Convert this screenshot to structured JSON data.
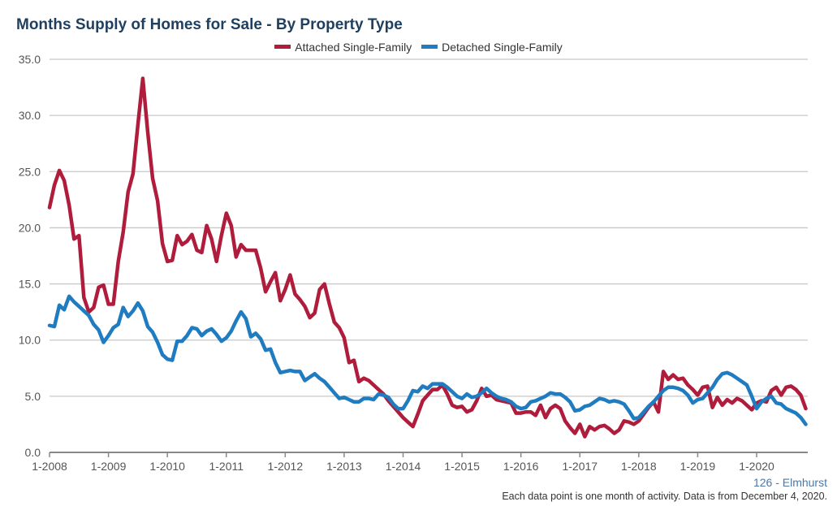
{
  "chart_data": {
    "type": "line",
    "title": "Months Supply of Homes for Sale - By Property Type",
    "xlabel": "",
    "ylabel": "",
    "ylim": [
      0,
      35
    ],
    "yticks": [
      "0.0",
      "5.0",
      "10.0",
      "15.0",
      "20.0",
      "25.0",
      "30.0",
      "35.0"
    ],
    "xticks": [
      "1-2008",
      "1-2009",
      "1-2010",
      "1-2011",
      "1-2012",
      "1-2013",
      "1-2014",
      "1-2015",
      "1-2016",
      "1-2017",
      "1-2018",
      "1-2019",
      "1-2020"
    ],
    "x_start": "1-2008",
    "x_end": "11-2020",
    "grid": "horizontal",
    "legend_position": "top",
    "series": [
      {
        "name": "Attached Single-Family",
        "color": "#b01c3b",
        "values": [
          21.8,
          23.8,
          25.1,
          24.2,
          22.0,
          19.0,
          19.3,
          13.8,
          12.5,
          12.9,
          14.7,
          14.9,
          13.2,
          13.2,
          17.0,
          19.6,
          23.2,
          24.8,
          29.2,
          33.3,
          28.5,
          24.4,
          22.4,
          18.6,
          17.0,
          17.1,
          19.3,
          18.5,
          18.8,
          19.4,
          18.0,
          17.8,
          20.2,
          19.0,
          17.0,
          19.3,
          21.3,
          20.2,
          17.4,
          18.5,
          18.0,
          18.0,
          18.0,
          16.4,
          14.3,
          15.2,
          16.0,
          13.5,
          14.5,
          15.8,
          14.1,
          13.6,
          13.0,
          12.0,
          12.4,
          14.5,
          15.0,
          13.2,
          11.6,
          11.1,
          10.2,
          8.0,
          8.2,
          6.3,
          6.6,
          6.4,
          6.0,
          5.6,
          5.2,
          4.6,
          4.1,
          3.6,
          3.1,
          2.7,
          2.3,
          3.4,
          4.6,
          5.1,
          5.6,
          5.6,
          6.0,
          5.2,
          4.2,
          4.0,
          4.1,
          3.6,
          3.8,
          4.6,
          5.7,
          5.0,
          5.1,
          4.7,
          4.6,
          4.5,
          4.4,
          3.5,
          3.5,
          3.6,
          3.6,
          3.3,
          4.2,
          3.1,
          3.9,
          4.2,
          3.9,
          2.8,
          2.2,
          1.7,
          2.5,
          1.4,
          2.3,
          2.0,
          2.3,
          2.4,
          2.1,
          1.7,
          2.0,
          2.8,
          2.7,
          2.5,
          2.8,
          3.4,
          4.0,
          4.5,
          3.6,
          7.2,
          6.5,
          6.9,
          6.5,
          6.6,
          6.0,
          5.6,
          5.1,
          5.8,
          5.9,
          4.0,
          4.9,
          4.2,
          4.7,
          4.4,
          4.8,
          4.6,
          4.2,
          3.8,
          4.4,
          4.6,
          4.5,
          5.5,
          5.8,
          5.1,
          5.8,
          5.9,
          5.6,
          5.1,
          3.9
        ]
      },
      {
        "name": "Detached Single-Family",
        "color": "#1f7cc0",
        "values": [
          11.3,
          11.2,
          13.1,
          12.7,
          13.9,
          13.4,
          13.0,
          12.6,
          12.2,
          11.4,
          10.9,
          9.8,
          10.4,
          11.1,
          11.4,
          12.9,
          12.1,
          12.6,
          13.3,
          12.6,
          11.2,
          10.7,
          9.8,
          8.7,
          8.3,
          8.2,
          9.9,
          9.9,
          10.4,
          11.1,
          11.0,
          10.4,
          10.8,
          11.0,
          10.5,
          9.9,
          10.2,
          10.8,
          11.7,
          12.5,
          11.9,
          10.3,
          10.6,
          10.1,
          9.1,
          9.2,
          8.0,
          7.1,
          7.2,
          7.3,
          7.2,
          7.2,
          6.4,
          6.7,
          7.0,
          6.6,
          6.3,
          5.8,
          5.3,
          4.8,
          4.9,
          4.7,
          4.5,
          4.5,
          4.8,
          4.8,
          4.7,
          5.2,
          5.1,
          4.9,
          4.3,
          3.9,
          3.9,
          4.6,
          5.5,
          5.4,
          5.9,
          5.7,
          6.1,
          6.1,
          6.1,
          5.8,
          5.4,
          5.0,
          4.8,
          5.2,
          4.9,
          5.0,
          5.3,
          5.7,
          5.3,
          5.0,
          4.8,
          4.7,
          4.5,
          4.1,
          3.9,
          4.0,
          4.5,
          4.6,
          4.8,
          5.0,
          5.3,
          5.2,
          5.2,
          4.9,
          4.5,
          3.7,
          3.8,
          4.1,
          4.2,
          4.5,
          4.8,
          4.7,
          4.5,
          4.6,
          4.5,
          4.3,
          3.7,
          3.0,
          3.1,
          3.6,
          4.1,
          4.5,
          5.0,
          5.5,
          5.8,
          5.8,
          5.7,
          5.5,
          5.1,
          4.4,
          4.7,
          4.8,
          5.3,
          5.8,
          6.5,
          7.0,
          7.1,
          6.9,
          6.6,
          6.3,
          6.0,
          5.0,
          3.9,
          4.5,
          4.8,
          5.0,
          4.4,
          4.3,
          3.9,
          3.7,
          3.5,
          3.1,
          2.5
        ]
      }
    ]
  },
  "region_label": "126 - Elmhurst",
  "footnote": "Each data point is one month of activity. Data is from December 4, 2020."
}
